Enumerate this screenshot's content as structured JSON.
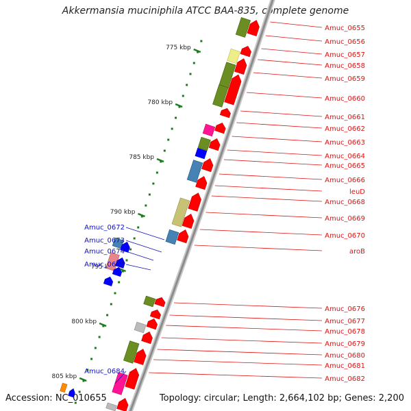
{
  "title": "Akkermansia muciniphila ATCC BAA-835, complete genome",
  "footer": {
    "accession": "Accession: NC_010655",
    "summary": "Topology: circular; Length: 2,664,102 bp; Genes: 2,200"
  },
  "colors": {
    "backbone": "#8c8c8c",
    "cds": "#ff0000",
    "right_label": "#dd1111",
    "left_label": "#1010c0",
    "tick": "#1d7a1d",
    "olive": "#6b8e23",
    "khaki": "#c8c275",
    "pale_yellow": "#eeee88",
    "steel_blue": "#4682b4",
    "magenta": "#ff1493",
    "gray": "#bbbbbb",
    "pink": "#e8868a",
    "orange": "#ff8c00",
    "blue": "#0000ff"
  },
  "scale_labels": [
    "775 kbp",
    "780 kbp",
    "785 kbp",
    "790 kbp",
    "795 kbp",
    "800 kbp",
    "805 kbp"
  ],
  "right_labels": [
    "Amuc_0655",
    "Amuc_0656",
    "Amuc_0657",
    "Amuc_0658",
    "Amuc_0659",
    "Amuc_0660",
    "Amuc_0661",
    "Amuc_0662",
    "Amuc_0663",
    "Amuc_0664",
    "Amuc_0665",
    "Amuc_0666",
    "leuD",
    "Amuc_0668",
    "Amuc_0669",
    "Amuc_0670",
    "aroB",
    "Amuc_0676",
    "Amuc_0677",
    "Amuc_0678",
    "Amuc_0679",
    "Amuc_0680",
    "Amuc_0681",
    "Amuc_0682"
  ],
  "left_labels": [
    "Amuc_0672",
    "Amuc_0673",
    "Amuc_0674",
    "Amuc_0675",
    "Amuc_0684"
  ]
}
